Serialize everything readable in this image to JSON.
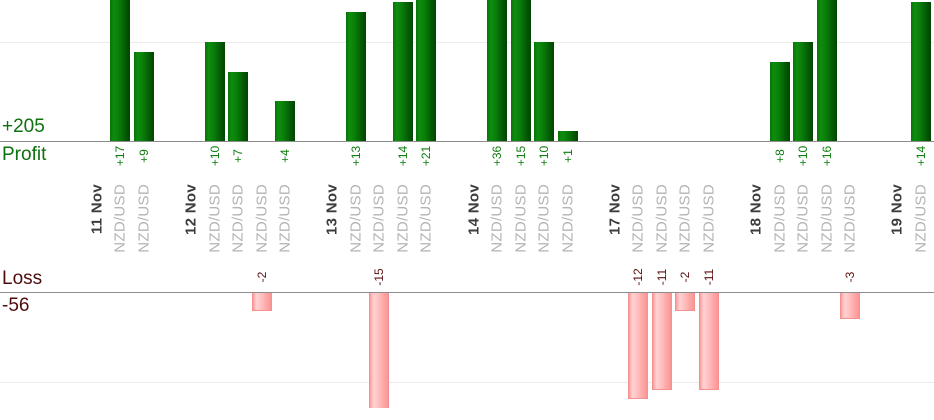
{
  "chart_data": {
    "type": "bar",
    "title": "",
    "profit_pane": {
      "label": "Profit",
      "total": 205,
      "total_label": "+205",
      "gridline_value": 10,
      "bar_color": "#0a7d0a",
      "value_label_color": "#0d7d0d",
      "text_color": "#0e700e"
    },
    "loss_pane": {
      "label": "Loss",
      "total": -56,
      "total_label": "-56",
      "gridline_value": -10,
      "bar_color": "#ffb0b0",
      "value_label_color": "#5c1010",
      "text_color": "#4e0d0d"
    },
    "groups": [
      {
        "date": "11 Nov",
        "trades": [
          {
            "symbol": "NZD/USD",
            "value": 17,
            "label": "+17"
          },
          {
            "symbol": "NZD/USD",
            "value": 9,
            "label": "+9"
          }
        ]
      },
      {
        "date": "12 Nov",
        "trades": [
          {
            "symbol": "NZD/USD",
            "value": 10,
            "label": "+10"
          },
          {
            "symbol": "NZD/USD",
            "value": 7,
            "label": "+7"
          },
          {
            "symbol": "NZD/USD",
            "value": -2,
            "label": "-2"
          },
          {
            "symbol": "NZD/USD",
            "value": 4,
            "label": "+4"
          }
        ]
      },
      {
        "date": "13 Nov",
        "trades": [
          {
            "symbol": "NZD/USD",
            "value": 13,
            "label": "+13"
          },
          {
            "symbol": "NZD/USD",
            "value": -15,
            "label": "-15"
          },
          {
            "symbol": "NZD/USD",
            "value": 14,
            "label": "+14"
          },
          {
            "symbol": "NZD/USD",
            "value": 21,
            "label": "+21"
          }
        ]
      },
      {
        "date": "14 Nov",
        "trades": [
          {
            "symbol": "NZD/USD",
            "value": 36,
            "label": "+36"
          },
          {
            "symbol": "NZD/USD",
            "value": 15,
            "label": "+15"
          },
          {
            "symbol": "NZD/USD",
            "value": 10,
            "label": "+10"
          },
          {
            "symbol": "NZD/USD",
            "value": 1,
            "label": "+1"
          }
        ]
      },
      {
        "date": "17 Nov",
        "trades": [
          {
            "symbol": "NZD/USD",
            "value": -12,
            "label": "-12"
          },
          {
            "symbol": "NZD/USD",
            "value": -11,
            "label": "-11"
          },
          {
            "symbol": "NZD/USD",
            "value": -2,
            "label": "-2"
          },
          {
            "symbol": "NZD/USD",
            "value": -11,
            "label": "-11"
          }
        ]
      },
      {
        "date": "18 Nov",
        "trades": [
          {
            "symbol": "NZD/USD",
            "value": 8,
            "label": "+8"
          },
          {
            "symbol": "NZD/USD",
            "value": 10,
            "label": "+10"
          },
          {
            "symbol": "NZD/USD",
            "value": 16,
            "label": "+16"
          },
          {
            "symbol": "NZD/USD",
            "value": -3,
            "label": "-3"
          }
        ]
      },
      {
        "date": "19 Nov",
        "trades": [
          {
            "symbol": "NZD/USD",
            "value": 14,
            "label": "+14"
          }
        ]
      }
    ],
    "layout_hints": {
      "legend": "none",
      "grid": "one horizontal gridline per pane at +10 / -10",
      "profit_bars_clipped_at_top": true,
      "loss_bars_clipped_at_bottom": true,
      "x_labels": "rotated 90deg, read bottom-to-top: bold date column then one NZD/USD column per trade"
    }
  }
}
